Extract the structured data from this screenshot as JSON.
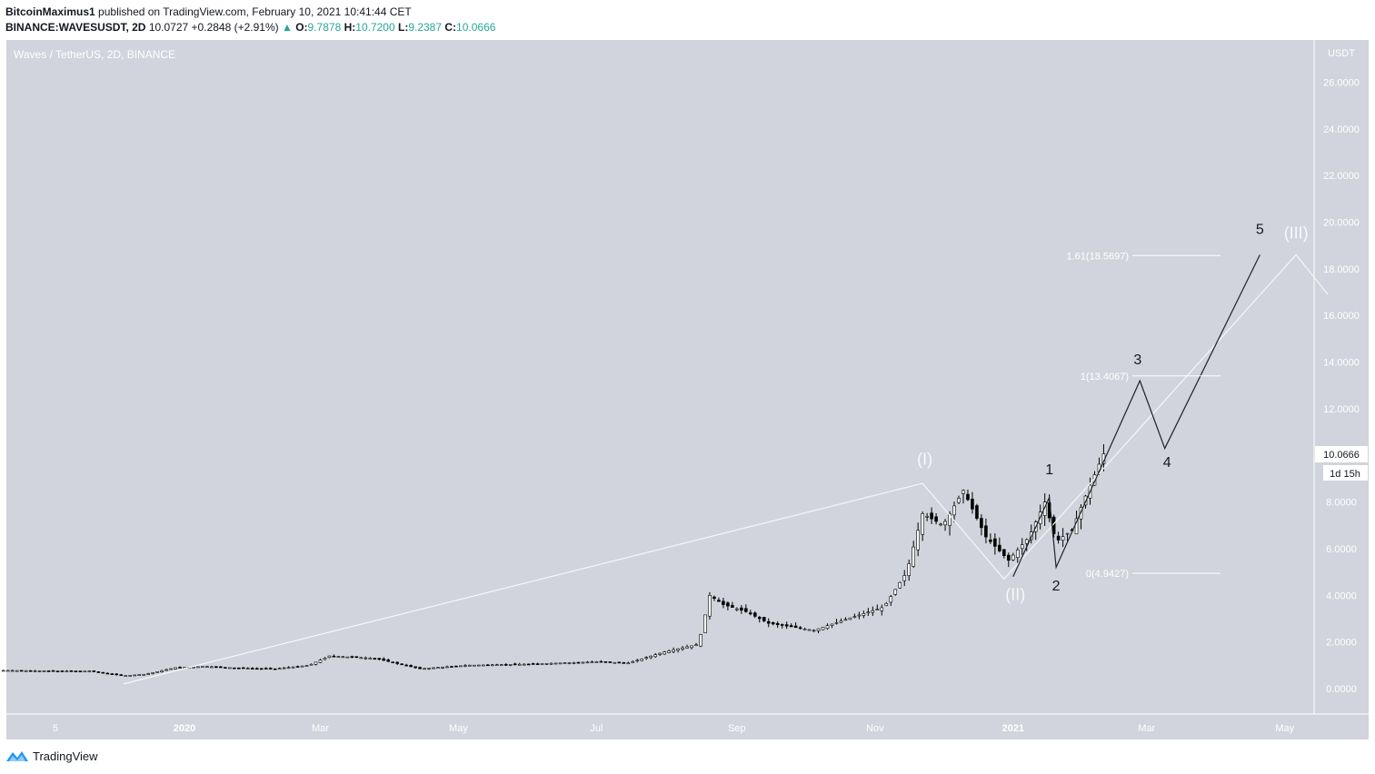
{
  "header": {
    "author": "BitcoinMaximus1",
    "published_text": "published on TradingView.com, February 10, 2021 10:41:44 CET",
    "symbol": "BINANCE:WAVESUSDT, 2D",
    "last": "10.0727",
    "change": "+0.2848 (+2.91%)",
    "open": "9.7878",
    "high": "10.7200",
    "low": "9.2387",
    "close": "10.0666"
  },
  "chart_data": {
    "type": "candlestick",
    "title": "Waves / TetherUS, 2D, BINANCE",
    "currency": "USDT",
    "y_ticks": [
      "26.0000",
      "24.0000",
      "22.0000",
      "20.0000",
      "18.0000",
      "16.0000",
      "14.0000",
      "12.0000",
      "10.0000",
      "8.0000",
      "6.0000",
      "4.0000",
      "2.0000",
      "0.0000"
    ],
    "x_ticks": [
      "5",
      "2020",
      "Mar",
      "May",
      "Jul",
      "Sep",
      "Nov",
      "2021",
      "Mar",
      "May"
    ],
    "ylim": [
      -1,
      26
    ],
    "current_price": "10.0666",
    "countdown": "1d 15h",
    "close_path": [
      [
        "2019-10-15",
        0.78
      ],
      [
        "2019-11-05",
        0.75
      ],
      [
        "2019-11-20",
        0.75
      ],
      [
        "2019-12-05",
        0.55
      ],
      [
        "2019-12-15",
        0.62
      ],
      [
        "2019-12-28",
        0.9
      ],
      [
        "2020-01-10",
        0.95
      ],
      [
        "2020-01-25",
        0.88
      ],
      [
        "2020-02-10",
        0.85
      ],
      [
        "2020-02-25",
        1.0
      ],
      [
        "2020-03-05",
        1.4
      ],
      [
        "2020-03-25",
        1.3
      ],
      [
        "2020-04-05",
        1.05
      ],
      [
        "2020-04-14",
        0.85
      ],
      [
        "2020-05-05",
        1.0
      ],
      [
        "2020-06-01",
        1.05
      ],
      [
        "2020-07-01",
        1.15
      ],
      [
        "2020-07-15",
        1.1
      ],
      [
        "2020-08-01",
        1.6
      ],
      [
        "2020-08-15",
        1.9
      ],
      [
        "2020-08-20",
        4.0
      ],
      [
        "2020-08-26",
        3.6
      ],
      [
        "2020-09-05",
        3.3
      ],
      [
        "2020-09-15",
        2.8
      ],
      [
        "2020-10-05",
        2.5
      ],
      [
        "2020-10-20",
        3.0
      ],
      [
        "2020-11-05",
        3.5
      ],
      [
        "2020-11-15",
        5.0
      ],
      [
        "2020-11-22",
        7.5
      ],
      [
        "2020-12-01",
        7.0
      ],
      [
        "2020-12-10",
        8.5
      ],
      [
        "2020-12-20",
        6.5
      ],
      [
        "2020-12-30",
        5.5
      ],
      [
        "2021-01-08",
        6.5
      ],
      [
        "2021-01-15",
        8.0
      ],
      [
        "2021-01-20",
        6.3
      ],
      [
        "2021-01-27",
        6.8
      ],
      [
        "2021-02-03",
        8.5
      ],
      [
        "2021-02-10",
        10.07
      ]
    ],
    "fib_levels": [
      {
        "label": "1.61(18.5697)",
        "value": 18.5697
      },
      {
        "label": "1(13.4067)",
        "value": 13.4067
      },
      {
        "label": "0(4.9427)",
        "value": 4.9427
      }
    ],
    "wave_labels": [
      {
        "text": "(I)",
        "date": "2020-11-23",
        "price": 9.6
      },
      {
        "text": "(II)",
        "date": "2021-01-02",
        "price": 3.8
      },
      {
        "text": "(III)",
        "date": "2021-05-06",
        "price": 19.3
      },
      {
        "text": "1",
        "date": "2021-01-17",
        "price": 9.2
      },
      {
        "text": "2",
        "date": "2021-01-20",
        "price": 4.2
      },
      {
        "text": "3",
        "date": "2021-02-25",
        "price": 13.9
      },
      {
        "text": "4",
        "date": "2021-03-10",
        "price": 9.5
      },
      {
        "text": "5",
        "date": "2021-04-20",
        "price": 19.5
      }
    ],
    "wave_paths": {
      "major": [
        [
          "2019-12-05",
          0.2
        ],
        [
          "2020-11-22",
          8.8
        ],
        [
          "2020-12-28",
          4.7
        ],
        [
          "2021-05-06",
          18.6
        ],
        [
          "2021-05-20",
          16.9
        ]
      ],
      "minor": [
        [
          "2021-01-01",
          4.8
        ],
        [
          "2021-01-17",
          8.2
        ],
        [
          "2021-01-20",
          5.2
        ],
        [
          "2021-02-26",
          13.2
        ],
        [
          "2021-03-09",
          10.3
        ],
        [
          "2021-04-20",
          18.6
        ]
      ]
    },
    "grid": false
  },
  "footer": {
    "brand": "TradingView"
  }
}
